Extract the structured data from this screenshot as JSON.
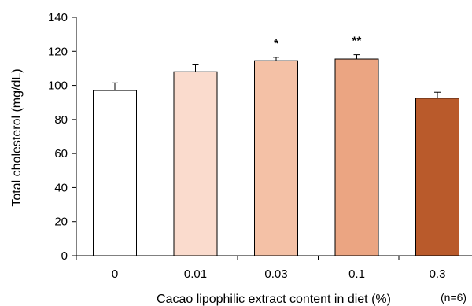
{
  "chart_data": {
    "type": "bar",
    "title": "",
    "xlabel": "Cacao lipophilic extract content in diet (%)",
    "ylabel": "Total cholesterol (mg/dL)",
    "ylim": [
      0,
      140
    ],
    "yticks": [
      0,
      20,
      40,
      60,
      80,
      100,
      120,
      140
    ],
    "categories": [
      "0",
      "0.01",
      "0.03",
      "0.1",
      "0.3"
    ],
    "values": [
      97,
      108,
      114.5,
      115.5,
      92.5
    ],
    "errors": [
      4.5,
      4.5,
      2,
      2.5,
      3.5
    ],
    "significance": [
      "",
      "",
      "*",
      "**",
      ""
    ],
    "bar_colors": [
      "#ffffff",
      "#fadbcd",
      "#f4c1a6",
      "#eba582",
      "#b95a2b"
    ],
    "sample_note": "(n=6)",
    "grid": false,
    "legend": "none"
  }
}
